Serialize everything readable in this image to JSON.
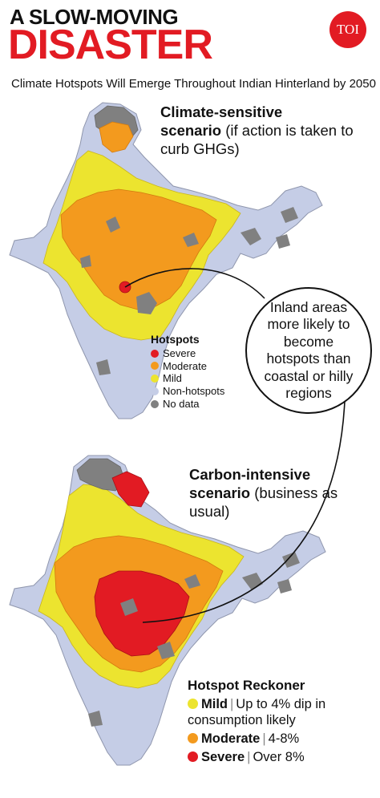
{
  "header": {
    "kicker": "A SLOW-MOVING",
    "headline": "DISASTER",
    "logo_text": "TOI",
    "subtitle": "Climate Hotspots Will Emerge Throughout Indian Hinterland by 2050"
  },
  "scenario_1": {
    "title_line1": "Climate-sensitive",
    "title_line2": "scenario",
    "description": "(if action is taken to curb GHGs)"
  },
  "scenario_2": {
    "title_line1": "Carbon-intensive",
    "title_line2": "scenario",
    "description": "(business as usual)"
  },
  "hotspots_legend": {
    "title": "Hotspots",
    "items": [
      {
        "label": "Severe",
        "color": "#e21b23"
      },
      {
        "label": "Moderate",
        "color": "#f39a1e"
      },
      {
        "label": "Mild",
        "color": "#ece42f"
      },
      {
        "label": "Non-hotspots",
        "color": "#c5cde6"
      },
      {
        "label": "No data",
        "color": "#808080"
      }
    ]
  },
  "callout": {
    "text": "Inland areas more likely to become hotspots than coastal or hilly regions"
  },
  "reckoner": {
    "title": "Hotspot Reckoner",
    "items": [
      {
        "label": "Mild",
        "desc": "Up to 4% dip in consumption likely",
        "color": "#ece42f"
      },
      {
        "label": "Moderate",
        "desc": "4-8%",
        "color": "#f39a1e"
      },
      {
        "label": "Severe",
        "desc": "Over 8%",
        "color": "#e21b23"
      }
    ]
  },
  "colors": {
    "severe": "#e21b23",
    "moderate": "#f39a1e",
    "mild": "#ece42f",
    "non_hotspot": "#c5cde6",
    "no_data": "#808080",
    "headline_red": "#e21b23"
  }
}
